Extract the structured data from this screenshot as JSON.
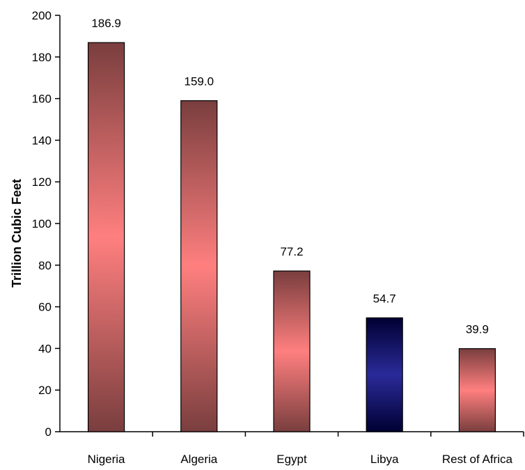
{
  "chart_data": {
    "type": "bar",
    "ylabel": "Trillion Cubic Feet",
    "categories": [
      "Nigeria",
      "Algeria",
      "Egypt",
      "Libya",
      "Rest of Africa"
    ],
    "values": [
      186.9,
      159.0,
      77.2,
      54.7,
      39.9
    ],
    "data_labels": [
      "186.9",
      "159.0",
      "77.2",
      "54.7",
      "39.9"
    ],
    "ylim": [
      0,
      200
    ],
    "yticks": [
      "0",
      "20",
      "40",
      "60",
      "80",
      "100",
      "120",
      "140",
      "160",
      "180",
      "200"
    ],
    "grid": false,
    "legend": "none",
    "colors": {
      "bar_default_edge": "#7a3e3e",
      "bar_default_mid": "#ff7f7f",
      "bar_highlight_edge": "#000033",
      "bar_highlight_mid": "#2a2a99"
    },
    "highlight_category": "Libya"
  }
}
